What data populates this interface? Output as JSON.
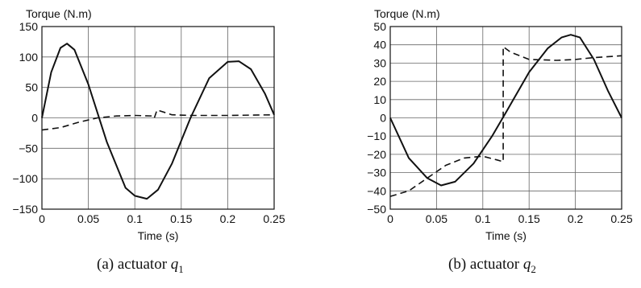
{
  "chart_data": [
    {
      "type": "line",
      "ylabel": "Torque (N.m)",
      "xlabel": "Time (s)",
      "xlim": [
        0,
        0.25
      ],
      "ylim": [
        -150,
        150
      ],
      "xticks": [
        "0",
        "0.05",
        "0.1",
        "0.15",
        "0.2",
        "0.25"
      ],
      "yticks": [
        "150",
        "100",
        "50",
        "0",
        "−50",
        "−100",
        "−150"
      ],
      "grid": true,
      "caption": {
        "prefix": "(a) actuator ",
        "var": "q",
        "sub": "1"
      },
      "series": [
        {
          "style": "solid",
          "x": [
            0,
            0.01,
            0.02,
            0.027,
            0.035,
            0.05,
            0.07,
            0.09,
            0.1,
            0.113,
            0.125,
            0.14,
            0.16,
            0.18,
            0.2,
            0.212,
            0.225,
            0.24,
            0.25
          ],
          "y": [
            0,
            75,
            115,
            122,
            112,
            55,
            -40,
            -115,
            -128,
            -133,
            -118,
            -75,
            0,
            65,
            92,
            93,
            80,
            40,
            5
          ]
        },
        {
          "style": "dashed",
          "x": [
            0,
            0.02,
            0.04,
            0.06,
            0.08,
            0.1,
            0.12,
            0.121,
            0.124,
            0.14,
            0.16,
            0.2,
            0.25
          ],
          "y": [
            -20,
            -16,
            -7,
            0,
            3,
            4,
            3,
            0,
            13,
            5,
            4,
            4,
            5
          ]
        }
      ]
    },
    {
      "type": "line",
      "ylabel": "Torque (N.m)",
      "xlabel": "Time (s)",
      "xlim": [
        0,
        0.25
      ],
      "ylim": [
        -50,
        50
      ],
      "xticks": [
        "0",
        "0.05",
        "0.1",
        "0.15",
        "0.2",
        "0.25"
      ],
      "yticks": [
        "50",
        "40",
        "30",
        "20",
        "10",
        "0",
        "−10",
        "−20",
        "−30",
        "−40",
        "−50"
      ],
      "grid": true,
      "caption": {
        "prefix": "(b) actuator ",
        "var": "q",
        "sub": "2"
      },
      "series": [
        {
          "style": "solid",
          "x": [
            0,
            0.02,
            0.04,
            0.055,
            0.07,
            0.09,
            0.11,
            0.125,
            0.15,
            0.17,
            0.185,
            0.195,
            0.205,
            0.22,
            0.235,
            0.25
          ],
          "y": [
            0,
            -22,
            -33,
            -37,
            -35,
            -25,
            -10,
            3,
            25,
            38,
            44,
            45.5,
            44,
            32,
            15,
            0
          ]
        },
        {
          "style": "dashed",
          "x": [
            0,
            0.02,
            0.04,
            0.06,
            0.08,
            0.1,
            0.115,
            0.122,
            0.122,
            0.13,
            0.15,
            0.18,
            0.2,
            0.22,
            0.25
          ],
          "y": [
            -43,
            -40,
            -33,
            -26,
            -22,
            -21,
            -23,
            -24,
            39,
            36,
            32,
            31.5,
            32,
            33,
            34
          ]
        }
      ]
    }
  ]
}
